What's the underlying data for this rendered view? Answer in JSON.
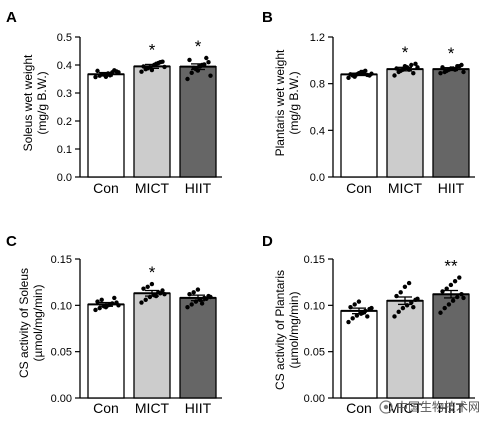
{
  "colors": {
    "Con": "#ffffff",
    "MICT": "#cccccc",
    "HIIT": "#666666",
    "outline": "#000000",
    "watermark": "#555555"
  },
  "watermark": "中国生物技术网",
  "chart_data": [
    {
      "panel": "A",
      "type": "bar",
      "ylabel": "Soleus wet weight\n(mg/g B.W.)",
      "ylim": [
        0,
        0.5
      ],
      "yticks": [
        "0.0",
        "0.1",
        "0.2",
        "0.3",
        "0.4",
        "0.5"
      ],
      "categories": [
        "Con",
        "MICT",
        "HIIT"
      ],
      "values": [
        0.367,
        0.395,
        0.394
      ],
      "sem": [
        0.006,
        0.007,
        0.01
      ],
      "significance": [
        "",
        "*",
        "*"
      ],
      "points": [
        [
          0.357,
          0.362,
          0.366,
          0.37,
          0.374,
          0.377,
          0.379,
          0.367,
          0.358,
          0.363,
          0.381,
          0.374
        ],
        [
          0.376,
          0.385,
          0.392,
          0.4,
          0.407,
          0.412,
          0.395,
          0.388,
          0.382,
          0.404,
          0.41,
          0.393
        ],
        [
          0.35,
          0.372,
          0.385,
          0.395,
          0.402,
          0.41,
          0.418,
          0.39,
          0.38,
          0.4,
          0.425,
          0.362
        ]
      ]
    },
    {
      "panel": "B",
      "type": "bar",
      "ylabel": "Plantaris wet weight\n(mg/g B.W.)",
      "ylim": [
        0,
        1.2
      ],
      "yticks": [
        "0.0",
        "0.4",
        "0.8",
        "1.2"
      ],
      "categories": [
        "Con",
        "MICT",
        "HIIT"
      ],
      "values": [
        0.88,
        0.925,
        0.925
      ],
      "sem": [
        0.01,
        0.015,
        0.012
      ],
      "significance": [
        "",
        "*",
        "*"
      ],
      "points": [
        [
          0.85,
          0.87,
          0.88,
          0.9,
          0.91,
          0.87,
          0.88,
          0.86,
          0.89,
          0.9,
          0.875,
          0.885
        ],
        [
          0.87,
          0.9,
          0.92,
          0.94,
          0.96,
          0.97,
          0.93,
          0.91,
          0.95,
          0.92,
          0.89,
          0.94
        ],
        [
          0.89,
          0.9,
          0.92,
          0.93,
          0.95,
          0.96,
          0.94,
          0.91,
          0.93,
          0.92,
          0.95,
          0.9
        ]
      ]
    },
    {
      "panel": "C",
      "type": "bar",
      "ylabel": "CS activity of Soleus\n(µmol/mg/min)",
      "ylim": [
        0,
        0.15
      ],
      "yticks": [
        "0.00",
        "0.05",
        "0.10",
        "0.15"
      ],
      "categories": [
        "Con",
        "MICT",
        "HIIT"
      ],
      "values": [
        0.101,
        0.113,
        0.108
      ],
      "sem": [
        0.002,
        0.003,
        0.003
      ],
      "significance": [
        "",
        "*",
        ""
      ],
      "points": [
        [
          0.095,
          0.097,
          0.099,
          0.1,
          0.102,
          0.103,
          0.104,
          0.106,
          0.098,
          0.101,
          0.108,
          0.1
        ],
        [
          0.103,
          0.106,
          0.109,
          0.111,
          0.114,
          0.116,
          0.118,
          0.12,
          0.123,
          0.11,
          0.113,
          0.112
        ],
        [
          0.098,
          0.101,
          0.104,
          0.106,
          0.108,
          0.11,
          0.112,
          0.114,
          0.117,
          0.102,
          0.107,
          0.109
        ]
      ]
    },
    {
      "panel": "D",
      "type": "bar",
      "ylabel": "CS activity of Plantaris\n(µmol/mg/min)",
      "ylim": [
        0,
        0.15
      ],
      "yticks": [
        "0.00",
        "0.05",
        "0.10",
        "0.15"
      ],
      "categories": [
        "Con",
        "MICT",
        "HIIT"
      ],
      "values": [
        0.094,
        0.105,
        0.112
      ],
      "sem": [
        0.003,
        0.004,
        0.004
      ],
      "significance": [
        "",
        "",
        "**"
      ],
      "points": [
        [
          0.082,
          0.086,
          0.089,
          0.091,
          0.094,
          0.096,
          0.098,
          0.101,
          0.104,
          0.092,
          0.088,
          0.097
        ],
        [
          0.088,
          0.093,
          0.097,
          0.1,
          0.103,
          0.106,
          0.11,
          0.114,
          0.12,
          0.124,
          0.098,
          0.107
        ],
        [
          0.092,
          0.097,
          0.101,
          0.105,
          0.109,
          0.112,
          0.115,
          0.118,
          0.122,
          0.126,
          0.13,
          0.108
        ]
      ]
    }
  ]
}
